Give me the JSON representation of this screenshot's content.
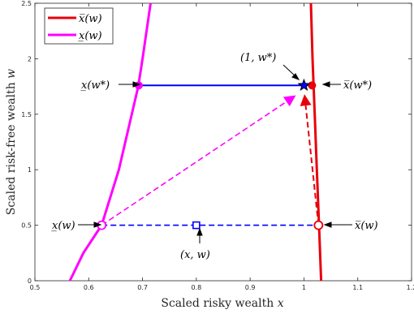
{
  "chart_data": {
    "type": "line",
    "xlabel_main": "Scaled risky wealth",
    "xlabel_var": "x",
    "ylabel_main": "Scaled risk-free wealth",
    "ylabel_var": "w",
    "xlim": [
      0.5,
      1.2
    ],
    "ylim": [
      0,
      2.5
    ],
    "xticks": [
      "0.5",
      "0.6",
      "0.7",
      "0.8",
      "0.9",
      "1",
      "1.1",
      "1.2"
    ],
    "yticks": [
      "0",
      "0.5",
      "1",
      "1.5",
      "2",
      "2.5"
    ],
    "colors": {
      "upper": "#e8000b",
      "lower": "#ff00ff",
      "blue": "#0000ff",
      "axis": "#262626"
    },
    "legend": {
      "position": "top-left",
      "upper": "x̅(w)",
      "lower": "x̲(w)"
    },
    "series": [
      {
        "name": "x̅(w)",
        "points": [
          [
            1.013,
            2.5
          ],
          [
            1.016,
            2.0
          ],
          [
            1.02,
            1.5
          ],
          [
            1.024,
            1.0
          ],
          [
            1.028,
            0.5
          ],
          [
            1.032,
            0.0
          ]
        ]
      },
      {
        "name": "x̲(w)",
        "points": [
          [
            0.565,
            0.0
          ],
          [
            0.59,
            0.25
          ],
          [
            0.624,
            0.5
          ],
          [
            0.656,
            1.0
          ],
          [
            0.692,
            1.75
          ],
          [
            0.7,
            2.0
          ],
          [
            0.715,
            2.5
          ]
        ]
      }
    ],
    "points": {
      "lower_w": [
        0.624,
        0.5
      ],
      "upper_w": [
        1.027,
        0.5
      ],
      "xw": [
        0.8,
        0.5
      ],
      "lower_wstar": [
        0.693,
        1.76
      ],
      "upper_wstar": [
        1.015,
        1.76
      ],
      "star": [
        1.0,
        1.76
      ]
    },
    "annotations": {
      "xw_label": "(x, w)",
      "star_label": "(1, w*)",
      "lower_w_label": "x̲(w)",
      "upper_w_label": "x̅(w)",
      "lower_wstar_label": "x̲(w*)",
      "upper_wstar_label": "x̅(w*)"
    }
  }
}
